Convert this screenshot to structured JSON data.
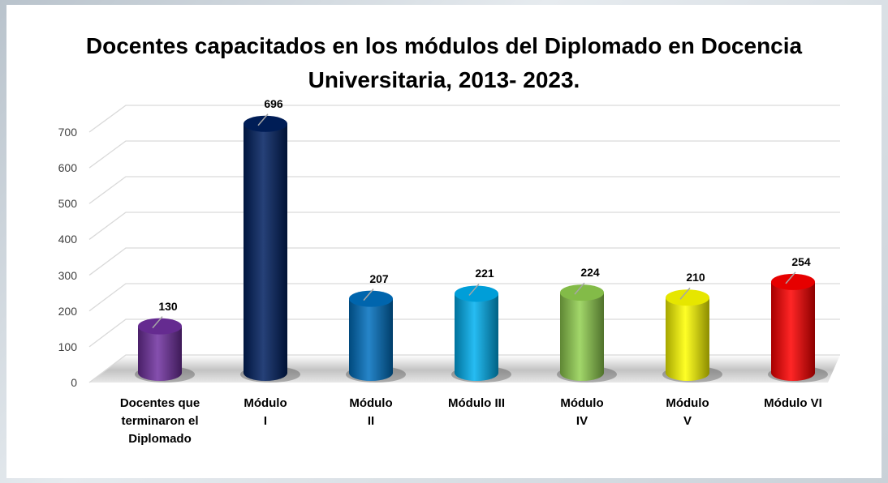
{
  "chart_data": {
    "type": "bar",
    "title": "Docentes capacitados en los módulos del Diplomado en Docencia\nUniversitaria, 2013- 2023.",
    "categories": [
      "Docentes que\nterminaron el\nDiplomado",
      "Módulo\nI",
      "Módulo\nII",
      "Módulo III",
      "Módulo\nIV",
      "Módulo\nV",
      "Módulo   VI"
    ],
    "values": [
      130,
      696,
      207,
      221,
      224,
      210,
      254
    ],
    "colors": [
      "#7030a0",
      "#002060",
      "#0070c0",
      "#00b0f0",
      "#92d050",
      "#ffff00",
      "#ff0000"
    ],
    "ylim": [
      0,
      700
    ],
    "yticks": [
      0,
      100,
      200,
      300,
      400,
      500,
      600,
      700
    ],
    "grid": true
  }
}
